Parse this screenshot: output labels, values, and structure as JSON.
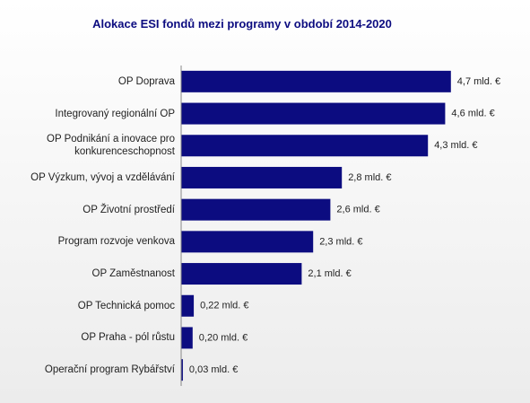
{
  "chart_data": {
    "type": "bar",
    "orientation": "horizontal",
    "title": "Alokace ESI fondů mezi programy v období 2014-2020",
    "categories": [
      "OP Doprava",
      "Integrovaný regionální OP",
      "OP Podnikání a inovace pro konkurenceschopnost",
      "OP Výzkum, vývoj a vzdělávání",
      "OP Životní prostředí",
      "Program rozvoje venkova",
      "OP Zaměstnanost",
      "OP Technická pomoc",
      "OP Praha - pól růstu",
      "Operační program Rybářství"
    ],
    "values": [
      4.7,
      4.6,
      4.3,
      2.8,
      2.6,
      2.3,
      2.1,
      0.22,
      0.2,
      0.03
    ],
    "value_labels": [
      "4,7 mld. €",
      "4,6 mld. €",
      "4,3 mld. €",
      "2,8 mld. €",
      "2,6 mld. €",
      "2,3 mld. €",
      "2,1 mld. €",
      "0,22 mld. €",
      "0,20 mld. €",
      "0,03 mld. €"
    ],
    "color": "#0c0c80"
  }
}
